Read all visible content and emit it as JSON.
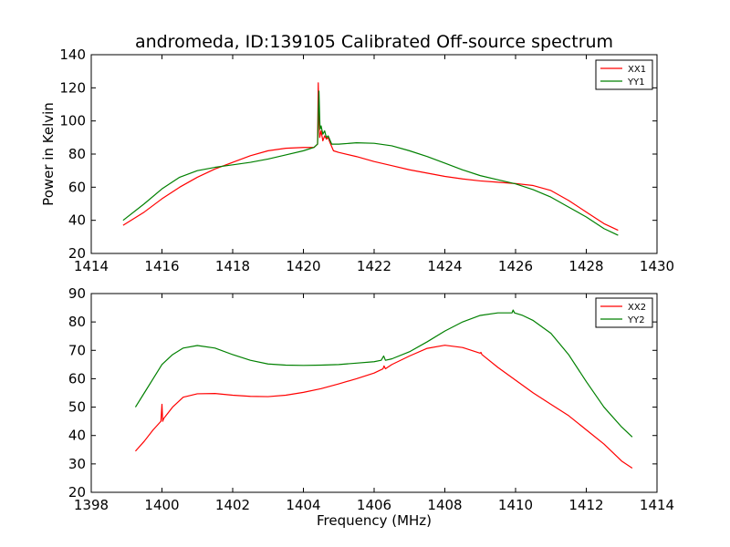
{
  "chart_data": [
    {
      "type": "line",
      "title": "andromeda, ID:139105 Calibrated Off-source spectrum",
      "xlabel": "",
      "ylabel": "Power in Kelvin",
      "xlim": [
        1414,
        1430
      ],
      "ylim": [
        20,
        140
      ],
      "xticks": [
        "1414",
        "1416",
        "1418",
        "1420",
        "1422",
        "1424",
        "1426",
        "1428",
        "1430"
      ],
      "yticks": [
        "20",
        "40",
        "60",
        "80",
        "100",
        "120",
        "140"
      ],
      "legend_position": "top-right",
      "series": [
        {
          "name": "XX1",
          "color": "#ff0000",
          "x": [
            1414.9,
            1415.5,
            1416.0,
            1416.5,
            1417.0,
            1417.5,
            1418.0,
            1418.5,
            1419.0,
            1419.5,
            1420.0,
            1420.3,
            1420.4,
            1420.42,
            1420.44,
            1420.46,
            1420.5,
            1420.55,
            1420.6,
            1420.65,
            1420.7,
            1420.75,
            1420.85,
            1421.0,
            1421.5,
            1422.0,
            1422.5,
            1423.0,
            1423.5,
            1424.0,
            1424.5,
            1425.0,
            1425.5,
            1426.0,
            1426.5,
            1427.0,
            1427.5,
            1428.0,
            1428.5,
            1428.9
          ],
          "values": [
            37,
            45,
            53,
            60,
            66,
            71,
            75,
            79,
            82,
            83.5,
            84,
            84,
            86,
            123,
            100,
            90,
            94,
            88,
            91,
            89,
            90,
            87,
            82,
            81,
            78.5,
            75.5,
            73,
            70.5,
            68.5,
            66.5,
            65,
            63.8,
            63,
            62.2,
            61,
            58,
            52,
            45,
            38,
            34
          ]
        },
        {
          "name": "YY1",
          "color": "#008000",
          "x": [
            1414.9,
            1415.5,
            1416.0,
            1416.5,
            1417.0,
            1417.5,
            1418.0,
            1418.5,
            1419.0,
            1419.5,
            1420.0,
            1420.3,
            1420.4,
            1420.44,
            1420.47,
            1420.5,
            1420.55,
            1420.6,
            1420.65,
            1420.7,
            1420.8,
            1421.0,
            1421.5,
            1422.0,
            1422.5,
            1423.0,
            1423.5,
            1424.0,
            1424.5,
            1425.0,
            1425.5,
            1426.0,
            1426.5,
            1427.0,
            1427.5,
            1428.0,
            1428.5,
            1428.9
          ],
          "values": [
            40,
            50,
            59,
            66,
            70,
            72,
            73.5,
            75,
            77,
            79.5,
            82,
            84,
            86,
            118,
            95,
            97,
            92,
            94,
            90,
            91,
            86,
            86,
            86.8,
            86.5,
            85,
            82,
            78.5,
            74.5,
            70.5,
            67,
            64.5,
            62,
            58.5,
            54,
            48,
            42,
            35,
            31
          ]
        }
      ]
    },
    {
      "type": "line",
      "title": "",
      "xlabel": "Frequency (MHz)",
      "ylabel": "",
      "xlim": [
        1398,
        1414
      ],
      "ylim": [
        20,
        90
      ],
      "xticks": [
        "1398",
        "1400",
        "1402",
        "1404",
        "1406",
        "1408",
        "1410",
        "1412",
        "1414"
      ],
      "yticks": [
        "20",
        "30",
        "40",
        "50",
        "60",
        "70",
        "80",
        "90"
      ],
      "legend_position": "top-right",
      "series": [
        {
          "name": "XX2",
          "color": "#ff0000",
          "x": [
            1399.25,
            1399.5,
            1399.75,
            1399.97,
            1400.0,
            1400.02,
            1400.05,
            1400.3,
            1400.6,
            1401.0,
            1401.5,
            1402.0,
            1402.5,
            1403.0,
            1403.5,
            1404.0,
            1404.5,
            1405.0,
            1405.5,
            1406.0,
            1406.25,
            1406.28,
            1406.32,
            1406.5,
            1407.0,
            1407.5,
            1408.0,
            1408.5,
            1409.0,
            1409.02,
            1409.05,
            1409.5,
            1410.0,
            1410.5,
            1411.0,
            1411.5,
            1412.0,
            1412.5,
            1413.0,
            1413.3
          ],
          "values": [
            34.5,
            38,
            42,
            45,
            51,
            45,
            46,
            50,
            53.5,
            54.7,
            54.8,
            54.2,
            53.8,
            53.7,
            54.2,
            55.2,
            56.5,
            58.2,
            60,
            62,
            63.5,
            64.5,
            63.5,
            65,
            68,
            70.7,
            71.8,
            71,
            69,
            69.3,
            68.5,
            64,
            59.5,
            55,
            51,
            47,
            42,
            37,
            31,
            28.5
          ]
        },
        {
          "name": "YY2",
          "color": "#008000",
          "x": [
            1399.25,
            1399.5,
            1399.75,
            1400.0,
            1400.3,
            1400.6,
            1401.0,
            1401.5,
            1402.0,
            1402.5,
            1403.0,
            1403.5,
            1404.0,
            1404.5,
            1405.0,
            1405.5,
            1406.0,
            1406.2,
            1406.27,
            1406.32,
            1406.5,
            1407.0,
            1407.5,
            1408.0,
            1408.5,
            1409.0,
            1409.5,
            1409.9,
            1409.93,
            1409.97,
            1410.2,
            1410.5,
            1411.0,
            1411.5,
            1412.0,
            1412.5,
            1413.0,
            1413.3
          ],
          "values": [
            50,
            55,
            60,
            65,
            68.5,
            70.8,
            71.7,
            70.8,
            68.5,
            66.5,
            65.2,
            64.8,
            64.7,
            64.8,
            65,
            65.5,
            66,
            66.5,
            68,
            66.5,
            67,
            69.5,
            73,
            76.8,
            80,
            82.3,
            83.2,
            83.2,
            84.2,
            83.2,
            82.3,
            80.5,
            76,
            68.5,
            59,
            50,
            43,
            39.5
          ]
        }
      ]
    }
  ]
}
